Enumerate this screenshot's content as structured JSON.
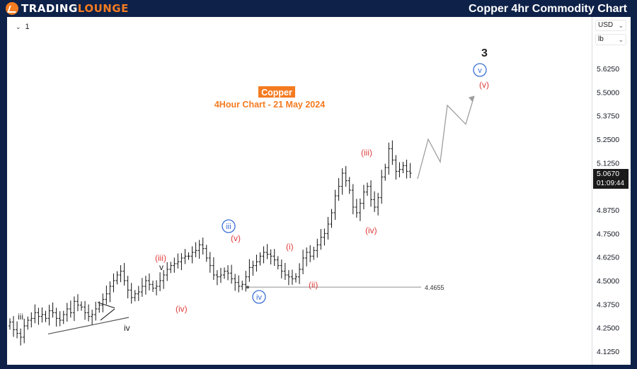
{
  "header": {
    "brand_part1": "TRADING",
    "brand_part2": "LOUNGE",
    "title": "Copper 4hr Commodity Chart"
  },
  "toolbar": {
    "interval": "1"
  },
  "axis": {
    "currency": "USD",
    "unit": "lb"
  },
  "last_price": {
    "value": "5.0670",
    "countdown": "01:09:44"
  },
  "chart_data": {
    "type": "ohlc",
    "title": "Copper",
    "subtitle": "4Hour Chart - 21 May 2024",
    "ylim": [
      4.1,
      5.72
    ],
    "y_ticks": [
      "5.6250",
      "5.5000",
      "5.3750",
      "5.2500",
      "5.1250",
      "4.8750",
      "4.7500",
      "4.6250",
      "4.5000",
      "4.3750",
      "4.2500",
      "4.1250"
    ],
    "support_level": {
      "value": 4.4655,
      "label": "4.4655"
    },
    "closes": [
      4.28,
      4.24,
      4.22,
      4.2,
      4.26,
      4.29,
      4.3,
      4.33,
      4.31,
      4.32,
      4.3,
      4.34,
      4.33,
      4.3,
      4.29,
      4.32,
      4.35,
      4.33,
      4.39,
      4.37,
      4.36,
      4.33,
      4.31,
      4.32,
      4.35,
      4.37,
      4.4,
      4.43,
      4.47,
      4.5,
      4.53,
      4.55,
      4.5,
      4.45,
      4.41,
      4.43,
      4.44,
      4.47,
      4.5,
      4.48,
      4.46,
      4.47,
      4.5,
      4.53,
      4.56,
      4.58,
      4.59,
      4.6,
      4.62,
      4.63,
      4.63,
      4.65,
      4.66,
      4.69,
      4.67,
      4.62,
      4.58,
      4.53,
      4.52,
      4.53,
      4.55,
      4.54,
      4.51,
      4.49,
      4.47,
      4.48,
      4.52,
      4.57,
      4.58,
      4.6,
      4.63,
      4.65,
      4.64,
      4.63,
      4.61,
      4.58,
      4.55,
      4.53,
      4.52,
      4.51,
      4.52,
      4.56,
      4.62,
      4.65,
      4.63,
      4.66,
      4.69,
      4.73,
      4.75,
      4.8,
      4.86,
      4.95,
      5.0,
      5.07,
      5.03,
      4.98,
      4.89,
      4.86,
      4.91,
      4.97,
      5.0,
      4.93,
      4.89,
      4.94,
      5.05,
      5.1,
      5.2,
      5.14,
      5.08,
      5.09,
      5.11,
      5.08,
      5.07
    ],
    "projection": [
      [
        5.04,
        0
      ],
      [
        5.25,
        1
      ],
      [
        5.13,
        2
      ],
      [
        5.43,
        3
      ],
      [
        5.33,
        4
      ],
      [
        5.48,
        5
      ]
    ],
    "wave_labels": [
      {
        "text": "iii",
        "style": "plain"
      },
      {
        "text": "iv",
        "style": "plain"
      },
      {
        "text": "v",
        "style": "plain"
      },
      {
        "text": "(iii)",
        "style": "red"
      },
      {
        "text": "(iv)",
        "style": "red"
      },
      {
        "text": "(v)",
        "style": "red"
      },
      {
        "text": "iii",
        "style": "circle"
      },
      {
        "text": "iv",
        "style": "circle"
      },
      {
        "text": "(i)",
        "style": "red"
      },
      {
        "text": "(ii)",
        "style": "red"
      },
      {
        "text": "(iii)",
        "style": "red"
      },
      {
        "text": "(iv)",
        "style": "red"
      },
      {
        "text": "v",
        "style": "circle"
      },
      {
        "text": "(v)",
        "style": "red"
      },
      {
        "text": "3",
        "style": "bold"
      }
    ],
    "colors": {
      "bars": "#111111",
      "red_labels": "#e03b3b",
      "circle_labels": "#3b6fd6",
      "title_bg": "#f47b20",
      "subtitle": "#f47b20",
      "projection": "#9e9e9e",
      "support": "#9e9e9e"
    }
  }
}
